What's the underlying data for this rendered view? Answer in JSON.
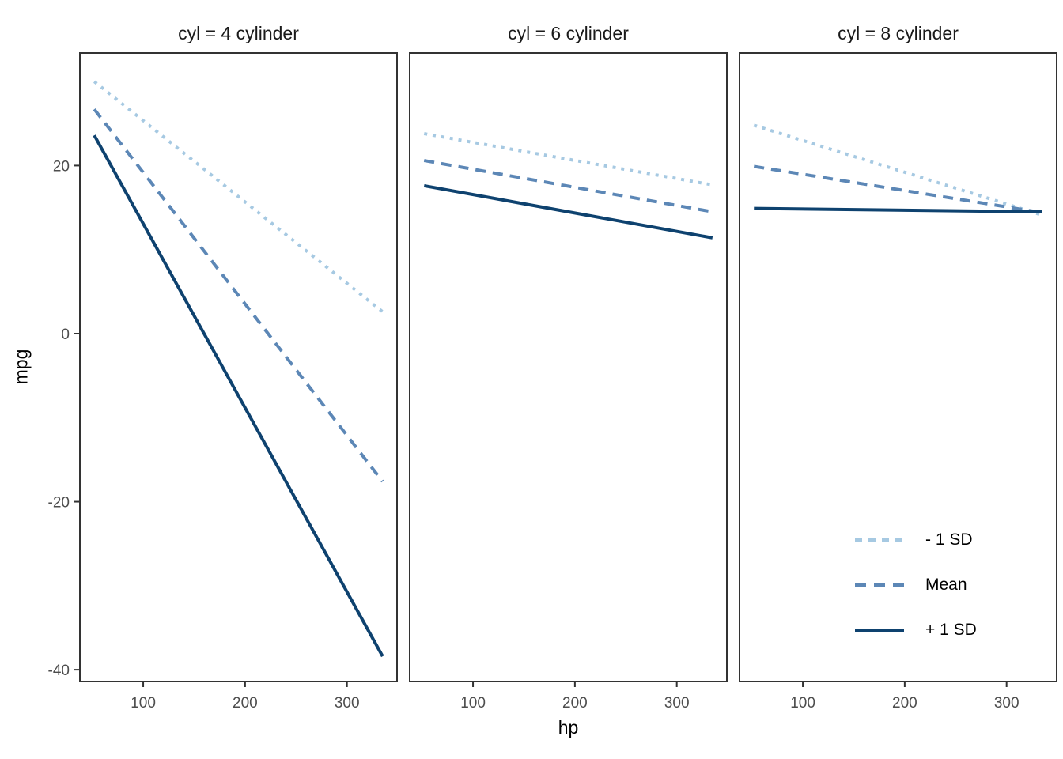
{
  "chart_data": {
    "type": "line",
    "title": "",
    "xlabel": "hp",
    "ylabel": "mpg",
    "grid": false,
    "x_ticks": [
      100,
      200,
      300
    ],
    "y_ticks": [
      20,
      0,
      -20,
      -40
    ],
    "x_domain": [
      37.85,
      349.15
    ],
    "y_domain": [
      -41.4,
      33.4
    ],
    "legend_position": "inside bottom-right of third panel",
    "legend": [
      {
        "label": "- 1 SD",
        "color": "#A6C9E2",
        "dash": "dotted"
      },
      {
        "label": "Mean",
        "color": "#5C87B6",
        "dash": "dashed"
      },
      {
        "label": "+ 1 SD",
        "color": "#0E426F",
        "dash": "solid"
      }
    ],
    "facets": [
      {
        "title": "cyl = 4 cylinder",
        "series": [
          {
            "name": "- 1 SD",
            "x": [
              52,
              335
            ],
            "y": [
              30.0,
              2.6
            ]
          },
          {
            "name": "Mean",
            "x": [
              52,
              335
            ],
            "y": [
              26.7,
              -17.6
            ]
          },
          {
            "name": "+ 1 SD",
            "x": [
              52,
              335
            ],
            "y": [
              23.6,
              -38.4
            ]
          }
        ]
      },
      {
        "title": "cyl = 6 cylinder",
        "series": [
          {
            "name": "- 1 SD",
            "x": [
              52,
              335
            ],
            "y": [
              23.8,
              17.7
            ]
          },
          {
            "name": "Mean",
            "x": [
              52,
              335
            ],
            "y": [
              20.6,
              14.5
            ]
          },
          {
            "name": "+ 1 SD",
            "x": [
              52,
              335
            ],
            "y": [
              17.6,
              11.4
            ]
          }
        ]
      },
      {
        "title": "cyl = 8 cylinder",
        "series": [
          {
            "name": "- 1 SD",
            "x": [
              52,
              335
            ],
            "y": [
              24.8,
              14.1
            ]
          },
          {
            "name": "Mean",
            "x": [
              52,
              335
            ],
            "y": [
              19.9,
              14.4
            ]
          },
          {
            "name": "+ 1 SD",
            "x": [
              52,
              335
            ],
            "y": [
              14.9,
              14.5
            ]
          }
        ]
      }
    ]
  },
  "colors": {
    "background": "#ffffff",
    "panel_border": "#333333",
    "tick_mark": "#333333",
    "axis_text": "#4d4d4d",
    "title_text": "#1a1a1a",
    "series_light": "#A6C9E2",
    "series_mid": "#5C87B6",
    "series_dark": "#0E426F"
  }
}
